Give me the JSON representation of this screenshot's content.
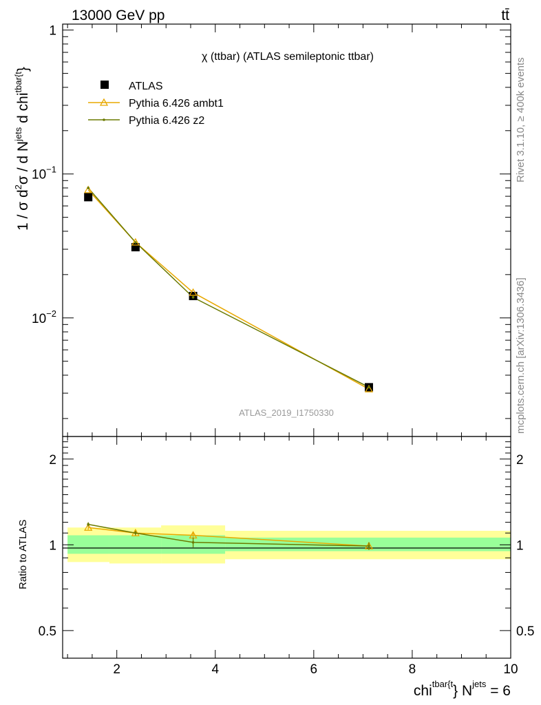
{
  "header": {
    "energy_label": "13000 GeV pp",
    "process_label": "tt̄"
  },
  "side_labels": {
    "rivet": "Rivet 3.1.10, ≥ 400k events",
    "mcplots": "mcplots.cern.ch [arXiv:1306.3436]"
  },
  "colors": {
    "atlas": "#000000",
    "ambt1": "#e8a800",
    "z2": "#6b7a00",
    "band_inner": "#99ff99",
    "band_outer": "#ffff99",
    "watermark": "#999999"
  },
  "chart_data": [
    {
      "type": "line",
      "title": "χ (ttbar) (ATLAS semileptonic ttbar)",
      "watermark": "ATLAS_2019_I1750330",
      "ylabel": "1 / σ d²σ / d N^jets d chi^tbar{t}",
      "ylabel_parts": {
        "main": "1 / σ d",
        "sup1": "2",
        "mid": "σ / d N",
        "sup2": "jets",
        "tail": " d chi",
        "sup3": "tbar{t",
        "close": "}"
      },
      "yscale": "log",
      "ylim": [
        0.0015,
        1.1
      ],
      "xlim": [
        0.9,
        10.0
      ],
      "yticks": [
        {
          "value": 1,
          "label": "1"
        },
        {
          "value": 0.1,
          "label": "10",
          "exp": "−1"
        },
        {
          "value": 0.01,
          "label": "10",
          "exp": "−2"
        }
      ],
      "legend": {
        "position": "top-left",
        "entries": [
          "ATLAS",
          "Pythia 6.426 ambt1",
          "Pythia 6.426 z2"
        ]
      },
      "x": [
        1.42,
        2.38,
        3.55,
        7.12
      ],
      "x_edges": [
        1.0,
        1.85,
        2.9,
        4.2,
        10.0
      ],
      "series": [
        {
          "name": "ATLAS",
          "marker": "square",
          "values": [
            0.069,
            0.031,
            0.0142,
            0.0033
          ]
        },
        {
          "name": "Pythia 6.426 ambt1",
          "marker": "triangle",
          "values": [
            0.0775,
            0.0335,
            0.015,
            0.0032
          ]
        },
        {
          "name": "Pythia 6.426 z2",
          "marker": "dot",
          "values": [
            0.08,
            0.0335,
            0.0139,
            0.0033
          ]
        }
      ]
    },
    {
      "type": "line",
      "title": "",
      "ylabel": "Ratio to ATLAS",
      "xlabel": "chi^tbar{t} N^jets = 6",
      "xlabel_parts": {
        "main": "chi",
        "sup1": "tbar{t",
        "mid": "} N",
        "sup2": "jets",
        "tail": " = 6"
      },
      "ylim": [
        0.4,
        2.4
      ],
      "xlim": [
        0.9,
        10.0
      ],
      "xticks": [
        2,
        4,
        6,
        8,
        10
      ],
      "yticks": [
        {
          "value": 2,
          "label": "2"
        },
        {
          "value": 1,
          "label": "1"
        },
        {
          "value": 0.5,
          "label": "0.5"
        }
      ],
      "x": [
        1.42,
        2.38,
        3.55,
        7.12
      ],
      "x_edges": [
        1.0,
        1.85,
        2.9,
        4.2,
        10.0
      ],
      "bands": {
        "inner": [
          [
            0.93,
            1.08
          ],
          [
            0.93,
            1.08
          ],
          [
            0.93,
            1.08
          ],
          [
            0.95,
            1.06
          ]
        ],
        "outer": [
          [
            0.87,
            1.15
          ],
          [
            0.86,
            1.15
          ],
          [
            0.86,
            1.17
          ],
          [
            0.89,
            1.12
          ]
        ]
      },
      "series": [
        {
          "name": "Pythia 6.426 ambt1",
          "marker": "triangle",
          "values": [
            1.15,
            1.1,
            1.08,
            0.99
          ],
          "errors": [
            0.02,
            0.02,
            0.03,
            0.03
          ]
        },
        {
          "name": "Pythia 6.426 z2",
          "marker": "dot",
          "values": [
            1.18,
            1.1,
            1.02,
            0.99
          ],
          "errors": [
            0.02,
            0.02,
            0.04,
            0.03
          ]
        }
      ]
    }
  ]
}
